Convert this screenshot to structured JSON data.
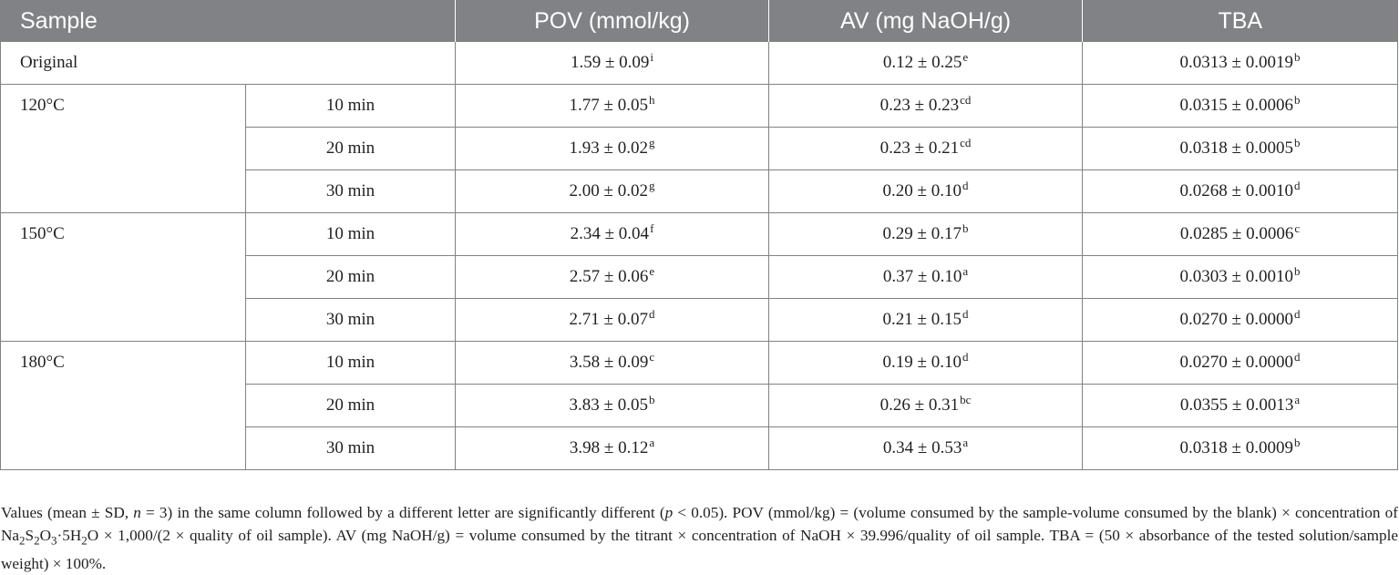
{
  "headers": {
    "sample": "Sample",
    "pov": "POV (mmol/kg)",
    "av": "AV (mg NaOH/g)",
    "tba": "TBA"
  },
  "original": {
    "label": "Original",
    "pov": "1.59 ± 0.09",
    "pov_sup": "i",
    "av": "0.12 ± 0.25",
    "av_sup": "e",
    "tba": "0.0313 ± 0.0019",
    "tba_sup": "b"
  },
  "groups": [
    {
      "temp": "120°C",
      "rows": [
        {
          "time": "10 min",
          "pov": "1.77 ± 0.05",
          "pov_sup": "h",
          "av": "0.23 ± 0.23",
          "av_sup": "cd",
          "tba": "0.0315 ± 0.0006",
          "tba_sup": "b"
        },
        {
          "time": "20 min",
          "pov": "1.93 ± 0.02",
          "pov_sup": "g",
          "av": "0.23 ± 0.21",
          "av_sup": "cd",
          "tba": "0.0318 ± 0.0005",
          "tba_sup": "b"
        },
        {
          "time": "30 min",
          "pov": "2.00 ± 0.02",
          "pov_sup": "g",
          "av": "0.20 ± 0.10",
          "av_sup": "d",
          "tba": "0.0268 ± 0.0010",
          "tba_sup": "d"
        }
      ]
    },
    {
      "temp": "150°C",
      "rows": [
        {
          "time": "10 min",
          "pov": "2.34 ± 0.04",
          "pov_sup": "f",
          "av": "0.29 ± 0.17",
          "av_sup": "b",
          "tba": "0.0285 ± 0.0006",
          "tba_sup": "c"
        },
        {
          "time": "20 min",
          "pov": "2.57 ± 0.06",
          "pov_sup": "e",
          "av": "0.37 ± 0.10",
          "av_sup": "a",
          "tba": "0.0303 ± 0.0010",
          "tba_sup": "b"
        },
        {
          "time": "30 min",
          "pov": "2.71 ± 0.07",
          "pov_sup": "d",
          "av": "0.21 ± 0.15",
          "av_sup": "d",
          "tba": "0.0270 ± 0.0000",
          "tba_sup": "d"
        }
      ]
    },
    {
      "temp": "180°C",
      "rows": [
        {
          "time": "10 min",
          "pov": "3.58 ± 0.09",
          "pov_sup": "c",
          "av": "0.19 ± 0.10",
          "av_sup": "d",
          "tba": "0.0270 ± 0.0000",
          "tba_sup": "d"
        },
        {
          "time": "20 min",
          "pov": "3.83 ± 0.05",
          "pov_sup": "b",
          "av": "0.26 ± 0.31",
          "av_sup": "bc",
          "tba": "0.0355 ± 0.0013",
          "tba_sup": "a"
        },
        {
          "time": "30 min",
          "pov": "3.98 ± 0.12",
          "pov_sup": "a",
          "av": "0.34 ± 0.53",
          "av_sup": "a",
          "tba": "0.0318 ± 0.0009",
          "tba_sup": "b"
        }
      ]
    }
  ],
  "footnote": {
    "p1": "Values (mean ± SD, ",
    "n_var": "n",
    "p2": " = 3) in the same column followed by a different letter are significantly different (",
    "p_var": "p",
    "p3": " < 0.05). POV (mmol/kg) = (volume consumed by the sample-volume consumed by the blank) × concentration of Na",
    "sub1": "2",
    "p4": "S",
    "sub2": "2",
    "p5": "O",
    "sub3": "3",
    "p6": "·5H",
    "sub4": "2",
    "p7": "O × 1,000/(2 × quality of oil sample). AV (mg NaOH/g) = volume consumed by the titrant × concentration of NaOH × 39.996/quality of oil sample. TBA = (50 × absorbance of the tested solution/sample weight) × 100%."
  }
}
